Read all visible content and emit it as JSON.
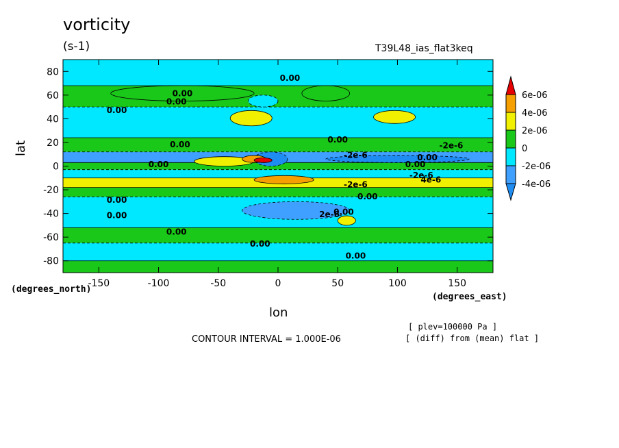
{
  "header": {
    "title": "vorticity",
    "units": "(s-1)",
    "run_id": "T39L48_ias_flat3keq"
  },
  "footer": {
    "contour_interval": "CONTOUR INTERVAL = 1.000E-06",
    "note_plev": "[ plev=100000 Pa ]",
    "note_diff": "[ (diff) from (mean) flat ]"
  },
  "axes": {
    "xlabel": "lon",
    "ylabel": "lat",
    "x_units": "(degrees_east)",
    "y_units": "(degrees_north)"
  },
  "colors": {
    "lt_neg4": "#1e8cf0",
    "neg4_neg2": "#3fa0ff",
    "neg2_0": "#00e8ff",
    "zero_2": "#19c819",
    "two_4": "#f0f000",
    "four_6": "#f5a000",
    "gt_6": "#e60000"
  },
  "chart_data": {
    "type": "heatmap",
    "variable": "vorticity",
    "units": "(s-1)",
    "xlabel": "lon",
    "ylabel": "lat",
    "xlim": [
      -180,
      180
    ],
    "ylim": [
      -90,
      90
    ],
    "x_ticks": [
      -150,
      -100,
      -50,
      0,
      50,
      100,
      150
    ],
    "y_ticks": [
      80,
      60,
      40,
      20,
      0,
      -20,
      -40,
      -60,
      -80
    ],
    "contour_interval": "1.000E-06",
    "colorbar": {
      "levels": [
        -4e-06,
        -2e-06,
        0,
        2e-06,
        4e-06,
        6e-06
      ],
      "labels": [
        "6e-06",
        "4e-06",
        "2e-06",
        "0",
        "-2e-06",
        "-4e-06"
      ],
      "extend": "both"
    },
    "bands": [
      {
        "lat": [
          68,
          90
        ],
        "value": -1e-06
      },
      {
        "lat": [
          50,
          68
        ],
        "value": 1e-06
      },
      {
        "lat": [
          24,
          50
        ],
        "value": -1e-06
      },
      {
        "lat": [
          12,
          24
        ],
        "value": 1e-06
      },
      {
        "lat": [
          3,
          12
        ],
        "value": -3e-06
      },
      {
        "lat": [
          -3,
          3
        ],
        "value": 1e-06
      },
      {
        "lat": [
          -10,
          -3
        ],
        "value": -1e-06
      },
      {
        "lat": [
          -18,
          -10
        ],
        "value": 3e-06
      },
      {
        "lat": [
          -26,
          -18
        ],
        "value": 1e-06
      },
      {
        "lat": [
          -52,
          -26
        ],
        "value": -1e-06
      },
      {
        "lat": [
          -65,
          -52
        ],
        "value": 1e-06
      },
      {
        "lat": [
          -80,
          -65
        ],
        "value": -1e-06
      },
      {
        "lat": [
          -90,
          -80
        ],
        "value": 1e-06
      }
    ],
    "features": [
      {
        "lon": [
          -140,
          -20
        ],
        "lat": [
          55,
          68
        ],
        "value": 1e-06
      },
      {
        "lon": [
          20,
          60
        ],
        "lat": [
          55,
          68
        ],
        "value": 1e-06
      },
      {
        "lon": [
          -25,
          0
        ],
        "lat": [
          50,
          60
        ],
        "value": -1e-06
      },
      {
        "lon": [
          -40,
          -5
        ],
        "lat": [
          34,
          47
        ],
        "value": 3e-06
      },
      {
        "lon": [
          80,
          115
        ],
        "lat": [
          36,
          47
        ],
        "value": 3e-06
      },
      {
        "lon": [
          -20,
          8
        ],
        "lat": [
          0,
          12
        ],
        "value": -5e-06
      },
      {
        "lon": [
          -70,
          -20
        ],
        "lat": [
          0,
          8
        ],
        "value": 3e-06
      },
      {
        "lon": [
          -30,
          -10
        ],
        "lat": [
          3,
          9
        ],
        "value": 5e-06
      },
      {
        "lon": [
          -20,
          -5
        ],
        "lat": [
          3,
          7
        ],
        "value": 7e-06
      },
      {
        "lon": [
          40,
          160
        ],
        "lat": [
          3,
          9
        ],
        "value": -5e-06
      },
      {
        "lon": [
          -20,
          30
        ],
        "lat": [
          -15,
          -8
        ],
        "value": 5e-06
      },
      {
        "lon": [
          -30,
          60
        ],
        "lat": [
          -45,
          -30
        ],
        "value": -3e-06
      },
      {
        "lon": [
          50,
          65
        ],
        "lat": [
          -50,
          -42
        ],
        "value": 3e-06
      }
    ],
    "contour_labels": [
      {
        "text": "0.00",
        "lon": 10,
        "lat": 72
      },
      {
        "text": "0.00",
        "lon": -80,
        "lat": 59
      },
      {
        "text": "0.00",
        "lon": -85,
        "lat": 52
      },
      {
        "text": "0.00",
        "lon": -135,
        "lat": 45
      },
      {
        "text": "0.00",
        "lon": 50,
        "lat": 20
      },
      {
        "text": "0.00",
        "lon": -82,
        "lat": 16
      },
      {
        "text": "-2e-6",
        "lon": 145,
        "lat": 15
      },
      {
        "text": "-2e-6",
        "lon": 65,
        "lat": 7
      },
      {
        "text": "0.00",
        "lon": 125,
        "lat": 5
      },
      {
        "text": "0.00",
        "lon": -100,
        "lat": -1
      },
      {
        "text": "0.00",
        "lon": 115,
        "lat": -1
      },
      {
        "text": "-2e-6",
        "lon": 120,
        "lat": -10
      },
      {
        "text": "-2e-6",
        "lon": 65,
        "lat": -18
      },
      {
        "text": "4e-6",
        "lon": 128,
        "lat": -14
      },
      {
        "text": "0.00",
        "lon": 75,
        "lat": -28
      },
      {
        "text": "0.00",
        "lon": -135,
        "lat": -31
      },
      {
        "text": "0.00",
        "lon": -135,
        "lat": -44
      },
      {
        "text": "2e-6",
        "lon": 43,
        "lat": -43
      },
      {
        "text": "0.00",
        "lon": 55,
        "lat": -41
      },
      {
        "text": "0.00",
        "lon": -85,
        "lat": -58
      },
      {
        "text": "0.00",
        "lon": -15,
        "lat": -68
      },
      {
        "text": "0.00",
        "lon": 65,
        "lat": -78
      }
    ]
  }
}
